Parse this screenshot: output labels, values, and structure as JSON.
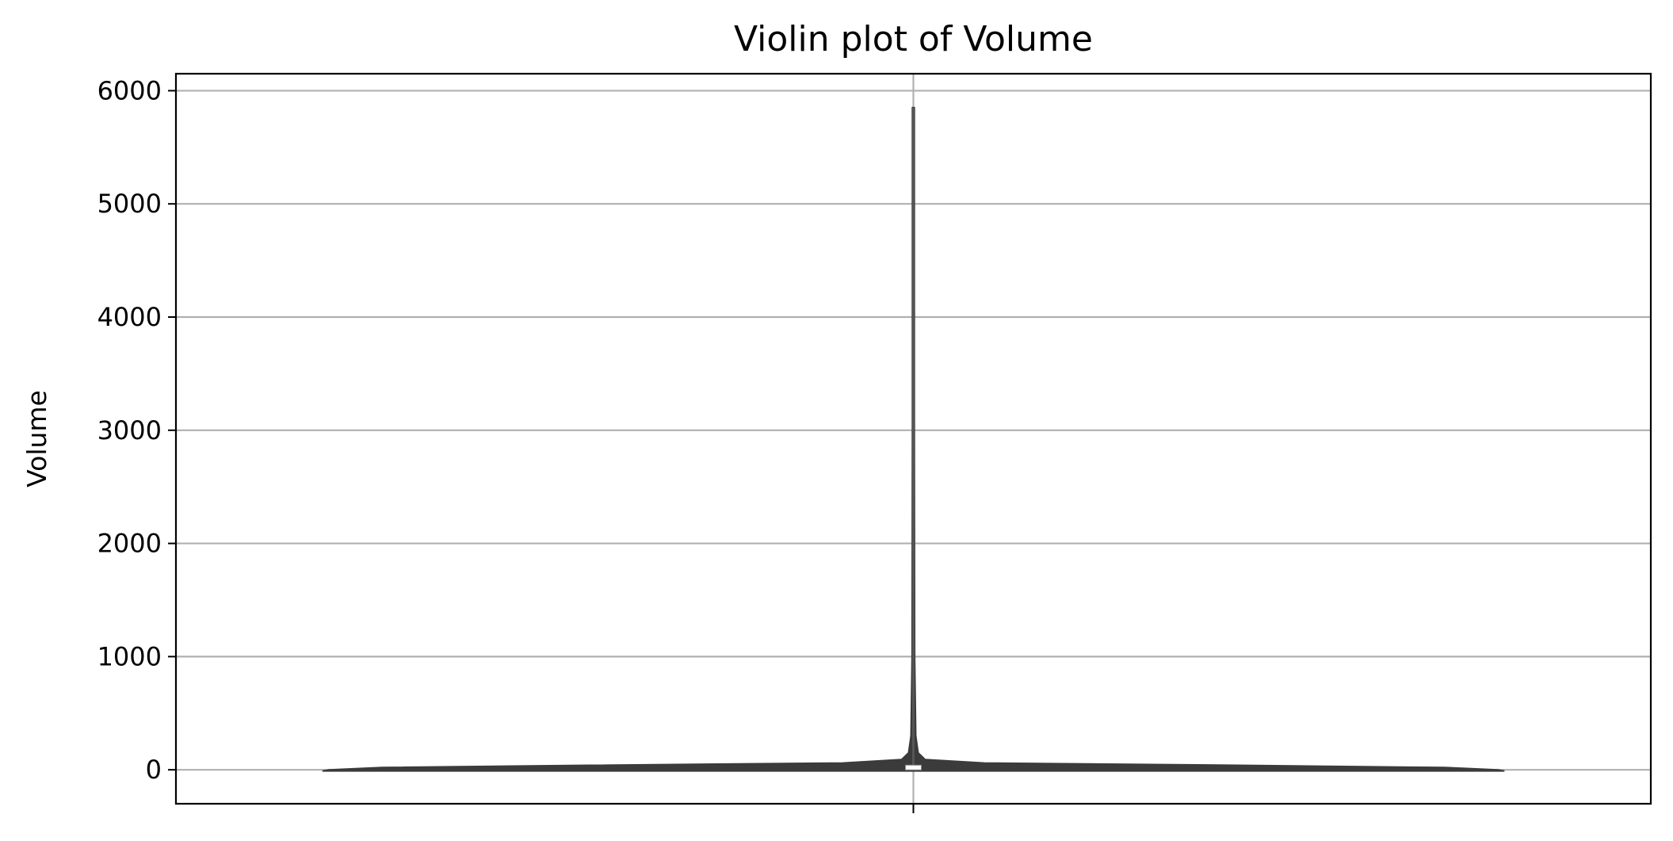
{
  "chart_data": {
    "type": "violin",
    "title": "Violin plot of Volume",
    "xlabel": "",
    "ylabel": "Volume",
    "ylim": [
      -300,
      6150
    ],
    "yticks": [
      0,
      1000,
      2000,
      3000,
      4000,
      5000,
      6000
    ],
    "grid": true,
    "series": [
      {
        "values_summary": {
          "min": 0,
          "q1": 5,
          "median": 20,
          "q3": 40,
          "max": 5850
        },
        "density_profile": [
          {
            "y": -10,
            "width": 1.0
          },
          {
            "y": 0,
            "width": 0.99
          },
          {
            "y": 20,
            "width": 0.9
          },
          {
            "y": 40,
            "width": 0.55
          },
          {
            "y": 60,
            "width": 0.12
          },
          {
            "y": 90,
            "width": 0.02
          },
          {
            "y": 150,
            "width": 0.008
          },
          {
            "y": 300,
            "width": 0.004
          },
          {
            "y": 1000,
            "width": 0.0022
          },
          {
            "y": 3000,
            "width": 0.0016
          },
          {
            "y": 5850,
            "width": 0.001
          }
        ]
      }
    ],
    "colors": {
      "fill": "#3b3b3b",
      "edge": "#3b3b3b",
      "box": "#1f77b4",
      "median": "#ffffff",
      "grid": "#b0b0b0",
      "spine": "#000000"
    }
  }
}
